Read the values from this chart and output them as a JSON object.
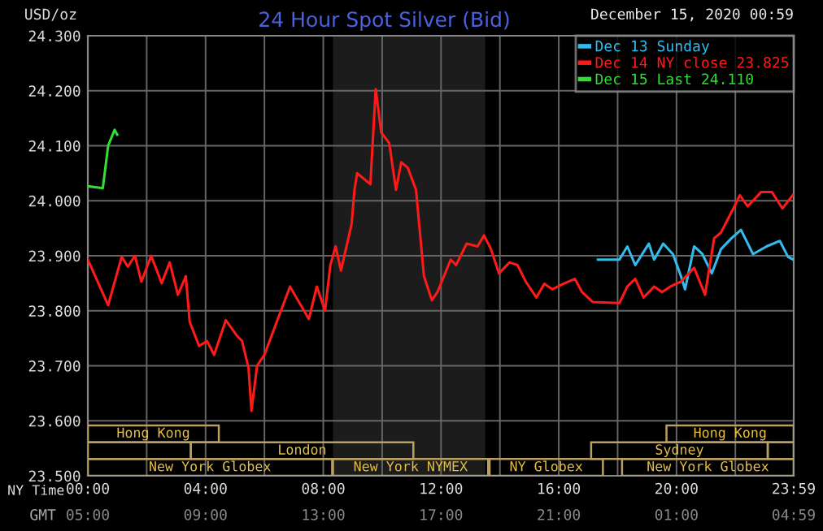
{
  "chart_data": {
    "type": "line",
    "title": "24 Hour Spot Silver (Bid)",
    "ylabel": "USD/oz",
    "xlabel": "NY Time",
    "annotations": [
      "December 15, 2020 00:59",
      "Hong Kong",
      "London",
      "New York Globex",
      "New York NYMEX",
      "NY Globex",
      "Sydney",
      "Hong Kong",
      "New York Globex",
      "GMT",
      "05:00",
      "09:00",
      "13:00",
      "17:00",
      "21:00",
      "01:00",
      "04:59"
    ],
    "xlim": [
      0,
      23.983
    ],
    "ylim": [
      23.5,
      24.3
    ],
    "xticks": [
      {
        "value": 0,
        "label": "00:00"
      },
      {
        "value": 2,
        "label": null
      },
      {
        "value": 4,
        "label": "04:00"
      },
      {
        "value": 6,
        "label": null
      },
      {
        "value": 8,
        "label": "08:00"
      },
      {
        "value": 10,
        "label": null
      },
      {
        "value": 12,
        "label": "12:00"
      },
      {
        "value": 14,
        "label": null
      },
      {
        "value": 16,
        "label": "16:00"
      },
      {
        "value": 18,
        "label": null
      },
      {
        "value": 20,
        "label": "20:00"
      },
      {
        "value": 22,
        "label": null
      },
      {
        "value": 23.983,
        "label": "23:59"
      }
    ],
    "yticks": [
      {
        "value": 23.5,
        "label": "23.500"
      },
      {
        "value": 23.6,
        "label": "23.600"
      },
      {
        "value": 23.7,
        "label": "23.700"
      },
      {
        "value": 23.8,
        "label": "23.800"
      },
      {
        "value": 23.9,
        "label": "23.900"
      },
      {
        "value": 24.0,
        "label": "24.000"
      },
      {
        "value": 24.1,
        "label": "24.100"
      },
      {
        "value": 24.2,
        "label": "24.200"
      },
      {
        "value": 24.3,
        "label": "24.300"
      }
    ],
    "grid": true,
    "legend": "top right",
    "marker": "none",
    "line_style": "solid",
    "bands": [
      {
        "axis": "x",
        "from": 8.33,
        "to": 13.5,
        "color": "#1c1c1c"
      }
    ],
    "series": [
      {
        "name": "Dec 13 Sunday",
        "color": "#33bbee",
        "x": [
          17.33,
          18.06,
          18.33,
          18.6,
          19.06,
          19.24,
          19.55,
          19.88,
          20.15,
          20.29,
          20.6,
          20.88,
          21.2,
          21.51,
          21.87,
          22.19,
          22.6,
          23.06,
          23.51,
          23.79,
          23.97
        ],
        "values": [
          23.893,
          23.893,
          23.917,
          23.883,
          23.922,
          23.893,
          23.922,
          23.903,
          23.863,
          23.839,
          23.917,
          23.903,
          23.868,
          23.912,
          23.932,
          23.947,
          23.903,
          23.917,
          23.927,
          23.898,
          23.893
        ]
      },
      {
        "name": "Dec 14 NY close 23.825",
        "color": "#ff1a1a",
        "x": [
          0.0,
          0.69,
          1.15,
          1.36,
          1.6,
          1.82,
          2.15,
          2.51,
          2.78,
          3.06,
          3.33,
          3.46,
          3.78,
          4.05,
          4.29,
          4.69,
          5.06,
          5.24,
          5.46,
          5.56,
          5.75,
          6.0,
          6.42,
          6.87,
          7.51,
          7.78,
          8.06,
          8.24,
          8.42,
          8.6,
          8.96,
          9.06,
          9.15,
          9.6,
          9.78,
          9.97,
          10.24,
          10.47,
          10.65,
          10.87,
          11.15,
          11.42,
          11.69,
          11.88,
          12.33,
          12.51,
          12.87,
          13.24,
          13.46,
          13.69,
          13.97,
          14.33,
          14.6,
          14.88,
          15.24,
          15.51,
          15.78,
          16.15,
          16.55,
          16.79,
          17.15,
          18.06,
          18.33,
          18.6,
          18.88,
          19.24,
          19.51,
          19.79,
          20.15,
          20.6,
          20.97,
          21.28,
          21.51,
          21.97,
          22.15,
          22.42,
          22.88,
          23.24,
          23.6,
          23.95
        ],
        "values": [
          23.893,
          23.81,
          23.898,
          23.88,
          23.9,
          23.853,
          23.9,
          23.85,
          23.888,
          23.829,
          23.863,
          23.78,
          23.736,
          23.745,
          23.72,
          23.783,
          23.755,
          23.745,
          23.696,
          23.618,
          23.7,
          23.72,
          23.78,
          23.844,
          23.785,
          23.844,
          23.8,
          23.883,
          23.917,
          23.873,
          23.957,
          24.02,
          24.05,
          24.03,
          24.203,
          24.124,
          24.105,
          24.02,
          24.07,
          24.06,
          24.02,
          23.863,
          23.819,
          23.834,
          23.893,
          23.883,
          23.922,
          23.917,
          23.937,
          23.913,
          23.868,
          23.888,
          23.883,
          23.853,
          23.824,
          23.849,
          23.839,
          23.849,
          23.858,
          23.834,
          23.816,
          23.814,
          23.844,
          23.858,
          23.824,
          23.844,
          23.834,
          23.844,
          23.853,
          23.878,
          23.829,
          23.932,
          23.942,
          23.99,
          24.01,
          23.99,
          24.016,
          24.016,
          23.986,
          24.01
        ]
      },
      {
        "name": "Dec 15 Last 24.110",
        "color": "#33dd33",
        "x": [
          0.05,
          0.51,
          0.69,
          0.91,
          1.0
        ],
        "values": [
          24.026,
          24.023,
          24.1,
          24.129,
          24.12
        ]
      }
    ]
  }
}
